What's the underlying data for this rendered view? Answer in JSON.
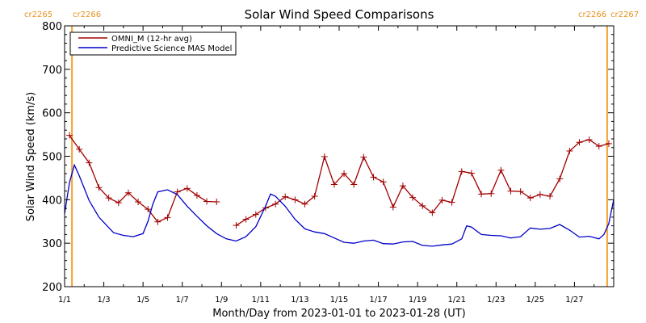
{
  "chart_data": {
    "type": "line",
    "title": "Solar Wind Speed Comparisons",
    "xlabel": "Month/Day from 2023-01-01 to 2023-01-28 (UT)",
    "ylabel": "Solar Wind Speed (km/s)",
    "ylim": [
      200,
      800
    ],
    "xlim": [
      "2023-01-01",
      "2023-01-29"
    ],
    "x_ticks": [
      "1/1",
      "1/3",
      "1/5",
      "1/7",
      "1/9",
      "1/11",
      "1/13",
      "1/15",
      "1/17",
      "1/19",
      "1/21",
      "1/23",
      "1/25",
      "1/27"
    ],
    "y_ticks": [
      200,
      300,
      400,
      500,
      600,
      700,
      800
    ],
    "grid": false,
    "legend": "top-left",
    "carrington_markers": [
      {
        "date": "2023-01-01T09:00",
        "label_left": "cr2265",
        "label_right": "cr2266",
        "color": "#f4a030"
      },
      {
        "date": "2023-01-28T16:00",
        "label_left": "cr2266",
        "label_right": "cr2267",
        "color": "#f4a030"
      }
    ],
    "series": [
      {
        "name": "OMNI_M (12-hr avg)",
        "color": "#a00000",
        "marker": "plus",
        "points": [
          [
            "2023-01-01T06:00",
            548
          ],
          [
            "2023-01-01T18:00",
            516
          ],
          [
            "2023-01-02T06:00",
            485
          ],
          [
            "2023-01-02T18:00",
            428
          ],
          [
            "2023-01-03T06:00",
            404
          ],
          [
            "2023-01-03T18:00",
            393
          ],
          [
            "2023-01-04T06:00",
            416
          ],
          [
            "2023-01-04T18:00",
            395
          ],
          [
            "2023-01-05T06:00",
            378
          ],
          [
            "2023-01-05T18:00",
            349
          ],
          [
            "2023-01-06T06:00",
            359
          ],
          [
            "2023-01-06T18:00",
            418
          ],
          [
            "2023-01-07T06:00",
            426
          ],
          [
            "2023-01-07T18:00",
            410
          ],
          [
            "2023-01-08T06:00",
            396
          ],
          [
            "2023-01-08T18:00",
            395
          ],
          null,
          [
            "2023-01-09T18:00",
            341
          ],
          [
            "2023-01-10T06:00",
            355
          ],
          [
            "2023-01-10T18:00",
            366
          ],
          [
            "2023-01-11T06:00",
            381
          ],
          [
            "2023-01-11T18:00",
            390
          ],
          [
            "2023-01-12T06:00",
            407
          ],
          [
            "2023-01-12T18:00",
            400
          ],
          [
            "2023-01-13T06:00",
            390
          ],
          [
            "2023-01-13T18:00",
            408
          ],
          [
            "2023-01-14T06:00",
            499
          ],
          [
            "2023-01-14T18:00",
            435
          ],
          [
            "2023-01-15T06:00",
            460
          ],
          [
            "2023-01-15T18:00",
            435
          ],
          [
            "2023-01-16T06:00",
            498
          ],
          [
            "2023-01-16T18:00",
            452
          ],
          [
            "2023-01-17T06:00",
            441
          ],
          [
            "2023-01-17T18:00",
            383
          ],
          [
            "2023-01-18T06:00",
            432
          ],
          [
            "2023-01-18T18:00",
            405
          ],
          [
            "2023-01-19T06:00",
            386
          ],
          [
            "2023-01-19T18:00",
            370
          ],
          [
            "2023-01-20T06:00",
            399
          ],
          [
            "2023-01-20T18:00",
            394
          ],
          [
            "2023-01-21T06:00",
            465
          ],
          [
            "2023-01-21T18:00",
            461
          ],
          [
            "2023-01-22T06:00",
            413
          ],
          [
            "2023-01-22T18:00",
            414
          ],
          [
            "2023-01-23T06:00",
            468
          ],
          [
            "2023-01-23T18:00",
            420
          ],
          [
            "2023-01-24T06:00",
            419
          ],
          [
            "2023-01-24T18:00",
            404
          ],
          [
            "2023-01-25T06:00",
            412
          ],
          [
            "2023-01-25T18:00",
            408
          ],
          [
            "2023-01-26T06:00",
            448
          ],
          [
            "2023-01-26T18:00",
            512
          ],
          [
            "2023-01-27T06:00",
            532
          ],
          [
            "2023-01-27T18:00",
            538
          ],
          [
            "2023-01-28T06:00",
            523
          ],
          [
            "2023-01-28T18:00",
            529
          ]
        ]
      },
      {
        "name": "Predictive Science MAS Model",
        "color": "#0000c8",
        "marker": "none",
        "points": [
          [
            "2023-01-01T00:00",
            368
          ],
          [
            "2023-01-01T06:00",
            440
          ],
          [
            "2023-01-01T12:00",
            480
          ],
          [
            "2023-01-01T18:00",
            455
          ],
          [
            "2023-01-02T06:00",
            398
          ],
          [
            "2023-01-02T18:00",
            360
          ],
          [
            "2023-01-03T06:00",
            336
          ],
          [
            "2023-01-03T12:00",
            324
          ],
          [
            "2023-01-04T00:00",
            318
          ],
          [
            "2023-01-04T12:00",
            315
          ],
          [
            "2023-01-05T00:00",
            322
          ],
          [
            "2023-01-05T06:00",
            350
          ],
          [
            "2023-01-05T12:00",
            390
          ],
          [
            "2023-01-05T18:00",
            418
          ],
          [
            "2023-01-06T06:00",
            423
          ],
          [
            "2023-01-06T18:00",
            412
          ],
          [
            "2023-01-07T06:00",
            385
          ],
          [
            "2023-01-07T18:00",
            362
          ],
          [
            "2023-01-08T06:00",
            340
          ],
          [
            "2023-01-08T18:00",
            322
          ],
          [
            "2023-01-09T06:00",
            310
          ],
          [
            "2023-01-09T18:00",
            305
          ],
          [
            "2023-01-10T06:00",
            315
          ],
          [
            "2023-01-10T18:00",
            338
          ],
          [
            "2023-01-11T06:00",
            385
          ],
          [
            "2023-01-11T12:00",
            413
          ],
          [
            "2023-01-11T18:00",
            408
          ],
          [
            "2023-01-12T06:00",
            385
          ],
          [
            "2023-01-12T18:00",
            355
          ],
          [
            "2023-01-13T06:00",
            333
          ],
          [
            "2023-01-13T18:00",
            326
          ],
          [
            "2023-01-14T06:00",
            322
          ],
          [
            "2023-01-14T18:00",
            312
          ],
          [
            "2023-01-15T06:00",
            302
          ],
          [
            "2023-01-15T18:00",
            300
          ],
          [
            "2023-01-16T06:00",
            305
          ],
          [
            "2023-01-16T18:00",
            307
          ],
          [
            "2023-01-17T06:00",
            299
          ],
          [
            "2023-01-17T18:00",
            298
          ],
          [
            "2023-01-18T06:00",
            303
          ],
          [
            "2023-01-18T18:00",
            304
          ],
          [
            "2023-01-19T06:00",
            295
          ],
          [
            "2023-01-19T18:00",
            293
          ],
          [
            "2023-01-20T06:00",
            296
          ],
          [
            "2023-01-20T18:00",
            298
          ],
          [
            "2023-01-21T06:00",
            310
          ],
          [
            "2023-01-21T12:00",
            340
          ],
          [
            "2023-01-21T18:00",
            337
          ],
          [
            "2023-01-22T06:00",
            320
          ],
          [
            "2023-01-22T18:00",
            318
          ],
          [
            "2023-01-23T06:00",
            317
          ],
          [
            "2023-01-23T18:00",
            312
          ],
          [
            "2023-01-24T06:00",
            315
          ],
          [
            "2023-01-24T18:00",
            335
          ],
          [
            "2023-01-25T06:00",
            332
          ],
          [
            "2023-01-25T18:00",
            334
          ],
          [
            "2023-01-26T06:00",
            343
          ],
          [
            "2023-01-26T18:00",
            330
          ],
          [
            "2023-01-27T06:00",
            314
          ],
          [
            "2023-01-27T18:00",
            316
          ],
          [
            "2023-01-28T06:00",
            310
          ],
          [
            "2023-01-28T12:00",
            320
          ],
          [
            "2023-01-28T18:00",
            345
          ],
          [
            "2023-01-29T00:00",
            400
          ]
        ]
      }
    ]
  }
}
